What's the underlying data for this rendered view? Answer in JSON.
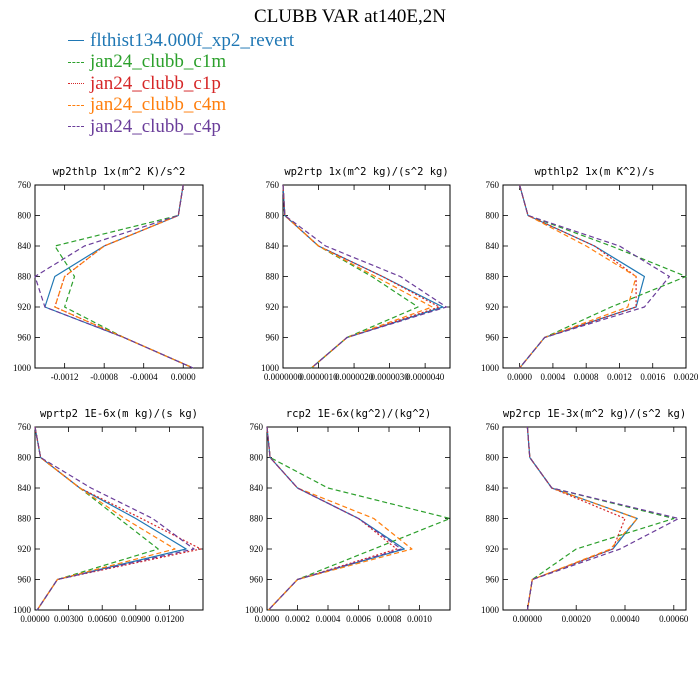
{
  "title": "CLUBB VAR at140E,2N",
  "colors": {
    "blue": "#1f77b4",
    "green": "#2ca02c",
    "red": "#d62728",
    "orange": "#ff7f0e",
    "purple": "#6a3d9a"
  },
  "legend": [
    {
      "label": "flthist134.000f_xp2_revert",
      "color": "#1f77b4",
      "style": "solid"
    },
    {
      "label": "jan24_clubb_c1m",
      "color": "#2ca02c",
      "style": "dashed"
    },
    {
      "label": "jan24_clubb_c1p",
      "color": "#d62728",
      "style": "dotted"
    },
    {
      "label": "jan24_clubb_c4m",
      "color": "#ff7f0e",
      "style": "dashed"
    },
    {
      "label": "jan24_clubb_c4p",
      "color": "#6a3d9a",
      "style": "dashed"
    }
  ],
  "chart_data": [
    {
      "type": "line",
      "title": "wp2thlp  1x(m^2 K)/s^2",
      "y": [
        760,
        800,
        840,
        880,
        920,
        960,
        1000
      ],
      "yticks": [
        "760",
        "800",
        "840",
        "880",
        "920",
        "960",
        "1000"
      ],
      "xlim": [
        -0.0015,
        0.0002
      ],
      "ylim": [
        1000,
        760
      ],
      "xticks": [
        {
          "v": -0.0012,
          "l": "-0.0012"
        },
        {
          "v": -0.0008,
          "l": "-0.0008"
        },
        {
          "v": -0.0004,
          "l": "-0.0004"
        },
        {
          "v": 0,
          "l": "0.0000"
        }
      ],
      "series": [
        {
          "name": "flthist134.000f_xp2_revert",
          "values": [
            0,
            -5e-05,
            -0.0008,
            -0.0013,
            -0.0014,
            -0.0006,
            0.0001
          ]
        },
        {
          "name": "jan24_clubb_c1m",
          "values": [
            0,
            -5e-05,
            -0.0013,
            -0.0011,
            -0.0012,
            -0.0006,
            0.0001
          ]
        },
        {
          "name": "jan24_clubb_c1p",
          "values": [
            0,
            -5e-05,
            -0.0008,
            -0.0012,
            -0.0013,
            -0.0006,
            0.0001
          ]
        },
        {
          "name": "jan24_clubb_c4m",
          "values": [
            0,
            -5e-05,
            -0.0008,
            -0.0012,
            -0.0013,
            -0.0006,
            0.0001
          ]
        },
        {
          "name": "jan24_clubb_c4p",
          "values": [
            0,
            -5e-05,
            -0.001,
            -0.0015,
            -0.0014,
            -0.0006,
            0.0001
          ]
        }
      ]
    },
    {
      "type": "line",
      "title": "wp2rtp  1x(m^2 kg)/(s^2 kg)",
      "y": [
        760,
        800,
        840,
        880,
        920,
        960,
        1000
      ],
      "yticks": [
        "760",
        "800",
        "840",
        "880",
        "920",
        "960",
        "1000"
      ],
      "xlim": [
        0,
        4.7e-06
      ],
      "ylim": [
        1000,
        760
      ],
      "xticks": [
        {
          "v": 0,
          "l": "0.0000000"
        },
        {
          "v": 1e-06,
          "l": "0.0000010"
        },
        {
          "v": 2e-06,
          "l": "0.0000020"
        },
        {
          "v": 3e-06,
          "l": "0.0000030"
        },
        {
          "v": 4e-06,
          "l": "0.0000040"
        }
      ],
      "series": [
        {
          "name": "flthist134.000f_xp2_revert",
          "values": [
            0,
            5e-08,
            1e-06,
            2.8e-06,
            4.5e-06,
            1.8e-06,
            8e-07
          ]
        },
        {
          "name": "jan24_clubb_c1m",
          "values": [
            0,
            5e-08,
            1e-06,
            2.5e-06,
            3.8e-06,
            1.8e-06,
            8e-07
          ]
        },
        {
          "name": "jan24_clubb_c1p",
          "values": [
            0,
            5e-08,
            1e-06,
            2.8e-06,
            4.4e-06,
            1.8e-06,
            8e-07
          ]
        },
        {
          "name": "jan24_clubb_c4m",
          "values": [
            0,
            5e-08,
            1e-06,
            2.6e-06,
            4.2e-06,
            1.8e-06,
            8e-07
          ]
        },
        {
          "name": "jan24_clubb_c4p",
          "values": [
            0,
            5e-08,
            1.2e-06,
            3.3e-06,
            4.6e-06,
            1.8e-06,
            8e-07
          ]
        }
      ]
    },
    {
      "type": "line",
      "title": "wpthlp2  1x(m K^2)/s",
      "y": [
        760,
        800,
        840,
        880,
        920,
        960,
        1000
      ],
      "yticks": [
        "760",
        "800",
        "840",
        "880",
        "920",
        "960",
        "1000"
      ],
      "xlim": [
        -0.0002,
        0.002
      ],
      "ylim": [
        1000,
        760
      ],
      "xticks": [
        {
          "v": 0,
          "l": "0.0000"
        },
        {
          "v": 0.0004,
          "l": "0.0004"
        },
        {
          "v": 0.0008,
          "l": "0.0008"
        },
        {
          "v": 0.0012,
          "l": "0.0012"
        },
        {
          "v": 0.0016,
          "l": "0.0016"
        },
        {
          "v": 0.002,
          "l": "0.0020"
        }
      ],
      "series": [
        {
          "name": "flthist134.000f_xp2_revert",
          "values": [
            0,
            0.0001,
            0.0009,
            0.0015,
            0.0014,
            0.0003,
            0
          ]
        },
        {
          "name": "jan24_clubb_c1m",
          "values": [
            0,
            0.0001,
            0.0011,
            0.002,
            0.0011,
            0.0003,
            0
          ]
        },
        {
          "name": "jan24_clubb_c1p",
          "values": [
            0,
            0.0001,
            0.0009,
            0.0014,
            0.0014,
            0.0003,
            0
          ]
        },
        {
          "name": "jan24_clubb_c4m",
          "values": [
            0,
            0.0001,
            0.0008,
            0.0014,
            0.0013,
            0.0003,
            0
          ]
        },
        {
          "name": "jan24_clubb_c4p",
          "values": [
            0,
            0.0001,
            0.0012,
            0.0018,
            0.0015,
            0.0003,
            0
          ]
        }
      ]
    },
    {
      "type": "line",
      "title": "wprtp2  1E-6x(m kg)/(s kg)",
      "y": [
        760,
        800,
        840,
        880,
        920,
        960,
        1000
      ],
      "yticks": [
        "760",
        "800",
        "840",
        "880",
        "920",
        "960",
        "1000"
      ],
      "xlim": [
        0,
        0.015
      ],
      "ylim": [
        1000,
        760
      ],
      "xticks": [
        {
          "v": 0,
          "l": "0.00000"
        },
        {
          "v": 0.003,
          "l": "0.00300"
        },
        {
          "v": 0.006,
          "l": "0.00600"
        },
        {
          "v": 0.009,
          "l": "0.00900"
        },
        {
          "v": 0.012,
          "l": "0.01200"
        }
      ],
      "series": [
        {
          "name": "flthist134.000f_xp2_revert",
          "values": [
            0,
            0.0005,
            0.004,
            0.009,
            0.0135,
            0.002,
            0.0002
          ]
        },
        {
          "name": "jan24_clubb_c1m",
          "values": [
            0,
            0.0005,
            0.004,
            0.0075,
            0.011,
            0.002,
            0.0002
          ]
        },
        {
          "name": "jan24_clubb_c1p",
          "values": [
            0,
            0.0005,
            0.004,
            0.0095,
            0.0148,
            0.002,
            0.0002
          ]
        },
        {
          "name": "jan24_clubb_c4m",
          "values": [
            0,
            0.0005,
            0.004,
            0.008,
            0.0125,
            0.002,
            0.0002
          ]
        },
        {
          "name": "jan24_clubb_c4p",
          "values": [
            0,
            0.0005,
            0.005,
            0.0105,
            0.0142,
            0.002,
            0.0002
          ]
        }
      ]
    },
    {
      "type": "line",
      "title": "rcp2  1E-6x(kg^2)/(kg^2)",
      "y": [
        760,
        800,
        840,
        880,
        920,
        960,
        1000
      ],
      "yticks": [
        "760",
        "800",
        "840",
        "880",
        "920",
        "960",
        "1000"
      ],
      "xlim": [
        0,
        0.0012
      ],
      "ylim": [
        1000,
        760
      ],
      "xticks": [
        {
          "v": 0,
          "l": "0.0000"
        },
        {
          "v": 0.0002,
          "l": "0.0002"
        },
        {
          "v": 0.0004,
          "l": "0.0004"
        },
        {
          "v": 0.0006,
          "l": "0.0006"
        },
        {
          "v": 0.0008,
          "l": "0.0008"
        },
        {
          "v": 0.001,
          "l": "0.0010"
        }
      ],
      "series": [
        {
          "name": "flthist134.000f_xp2_revert",
          "values": [
            0,
            2e-05,
            0.0002,
            0.0006,
            0.0009,
            0.0002,
            1e-05
          ]
        },
        {
          "name": "jan24_clubb_c1m",
          "values": [
            0,
            2e-05,
            0.0004,
            0.0012,
            0.0007,
            0.0002,
            1e-05
          ]
        },
        {
          "name": "jan24_clubb_c1p",
          "values": [
            0,
            2e-05,
            0.0002,
            0.0006,
            0.00085,
            0.0002,
            1e-05
          ]
        },
        {
          "name": "jan24_clubb_c4m",
          "values": [
            0,
            2e-05,
            0.0002,
            0.0007,
            0.00095,
            0.0002,
            1e-05
          ]
        },
        {
          "name": "jan24_clubb_c4p",
          "values": [
            0,
            2e-05,
            0.0002,
            0.0006,
            0.00088,
            0.0002,
            1e-05
          ]
        }
      ]
    },
    {
      "type": "line",
      "title": "wp2rcp  1E-3x(m^2 kg)/(s^2 kg)",
      "y": [
        760,
        800,
        840,
        880,
        920,
        960,
        1000
      ],
      "yticks": [
        "760",
        "800",
        "840",
        "880",
        "920",
        "960",
        "1000"
      ],
      "xlim": [
        -0.0001,
        0.00065
      ],
      "ylim": [
        1000,
        760
      ],
      "xticks": [
        {
          "v": 0,
          "l": "0.00000"
        },
        {
          "v": 0.0002,
          "l": "0.00020"
        },
        {
          "v": 0.0004,
          "l": "0.00040"
        },
        {
          "v": 0.0006,
          "l": "0.00060"
        }
      ],
      "series": [
        {
          "name": "flthist134.000f_xp2_revert",
          "values": [
            0,
            1e-05,
            0.0001,
            0.00045,
            0.00035,
            2e-05,
            0
          ]
        },
        {
          "name": "jan24_clubb_c1m",
          "values": [
            0,
            1e-05,
            0.0001,
            0.0006,
            0.0002,
            2e-05,
            0
          ]
        },
        {
          "name": "jan24_clubb_c1p",
          "values": [
            0,
            1e-05,
            0.0001,
            0.0004,
            0.00035,
            2e-05,
            0
          ]
        },
        {
          "name": "jan24_clubb_c4m",
          "values": [
            0,
            1e-05,
            0.0001,
            0.00045,
            0.00034,
            2e-05,
            0
          ]
        },
        {
          "name": "jan24_clubb_c4p",
          "values": [
            0,
            1e-05,
            0.0001,
            0.00062,
            0.00038,
            2e-05,
            0
          ]
        }
      ]
    }
  ]
}
